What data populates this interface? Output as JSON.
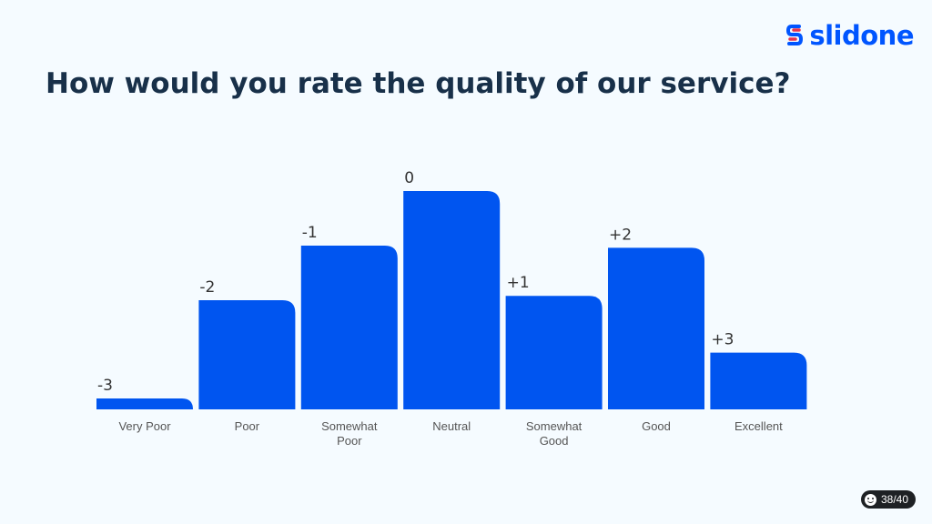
{
  "brand": {
    "name": "slidone",
    "color": "#0055ff",
    "accent": "#e8344e"
  },
  "slide": {
    "title": "How would you rate the quality of our service?"
  },
  "pager": {
    "text": "38/40",
    "icon": "smiley-icon"
  },
  "chart_data": {
    "type": "bar",
    "title": "",
    "xlabel": "",
    "ylabel": "",
    "bar_color": "#0055f0",
    "value_label_color": "#333333",
    "category_label_color": "#555555",
    "categories": [
      [
        "Very Poor"
      ],
      [
        "Poor"
      ],
      [
        "Somewhat",
        "Poor"
      ],
      [
        "Neutral"
      ],
      [
        "Somewhat",
        "Good"
      ],
      [
        "Good"
      ],
      [
        "Excellent"
      ]
    ],
    "value_labels": [
      "-3",
      "-2",
      "-1",
      "0",
      "+1",
      "+2",
      "+3"
    ],
    "values": [
      5,
      50,
      75,
      100,
      52,
      74,
      26
    ],
    "ylim": [
      0,
      100
    ],
    "grid": false,
    "legend": "none"
  }
}
